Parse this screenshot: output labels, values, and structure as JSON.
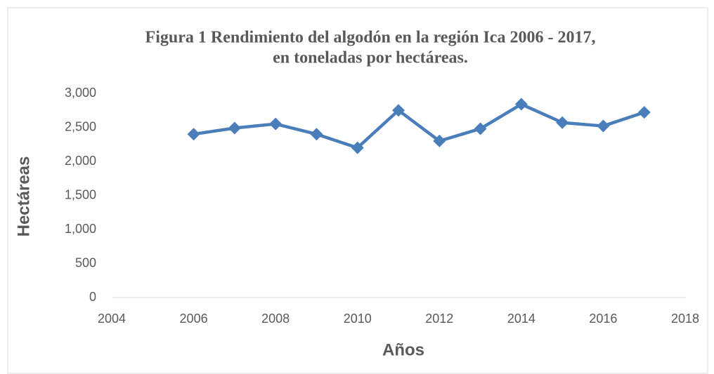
{
  "chart_data": {
    "type": "line",
    "title": [
      "Figura 1 Rendimiento del algodón en la región Ica 2006 - 2017,",
      "en toneladas por hectáreas."
    ],
    "x_label": "Años",
    "y_label": "Hectáreas",
    "x": [
      2006,
      2007,
      2008,
      2009,
      2010,
      2011,
      2012,
      2013,
      2014,
      2015,
      2016,
      2017
    ],
    "series": [
      {
        "name": "Rendimiento",
        "color": "#4a7ebb",
        "values": [
          2400,
          2490,
          2550,
          2400,
          2200,
          2750,
          2300,
          2480,
          2840,
          2570,
          2520,
          2720
        ]
      }
    ],
    "xlim": [
      2004,
      2018
    ],
    "xticks": [
      2004,
      2006,
      2008,
      2010,
      2012,
      2014,
      2016,
      2018
    ],
    "ylim": [
      0,
      3000
    ],
    "yticks": [
      0,
      500,
      {
        "value": 1000,
        "label": "1,000"
      },
      {
        "value": 1500,
        "label": "1,500"
      },
      {
        "value": 2000,
        "label": "2,000"
      },
      {
        "value": 2500,
        "label": "2,500"
      },
      {
        "value": 3000,
        "label": "3,000"
      }
    ],
    "grid": false
  }
}
